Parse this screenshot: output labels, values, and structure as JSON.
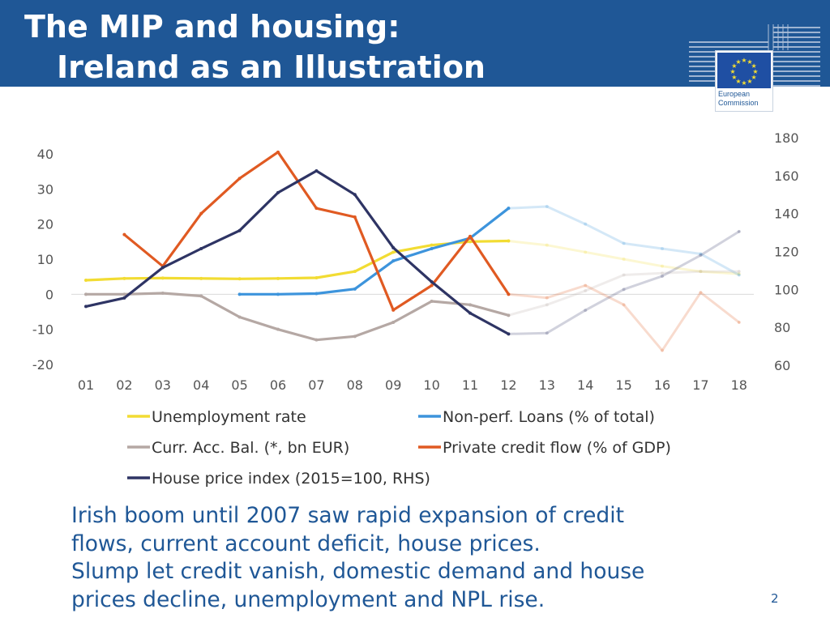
{
  "slide": {
    "title_line1": "The MIP and housing:",
    "title_line2": "Ireland as an Illustration",
    "logo": {
      "line1": "European",
      "line2": "Commission"
    },
    "body_lines": [
      "Irish boom until 2007 saw rapid expansion of credit",
      "flows, current account deficit, house prices.",
      "Slump let credit vanish, domestic demand and house",
      "prices decline, unemployment and NPL rise."
    ],
    "page_number": "2"
  },
  "colors": {
    "header_bg": "#1f5796",
    "text_blue": "#1f5796",
    "unemployment": "#f2dc33",
    "npl": "#3d94dc",
    "current_account": "#b5a8a4",
    "credit_flow": "#e05a22",
    "house_price": "#2e3464"
  },
  "chart_data": {
    "type": "line",
    "title": "",
    "x": [
      "01",
      "02",
      "03",
      "04",
      "05",
      "06",
      "07",
      "08",
      "09",
      "10",
      "11",
      "12",
      "13",
      "14",
      "15",
      "16",
      "17",
      "18"
    ],
    "forecast_from_index": 12,
    "y_left": {
      "ticks": [
        "40",
        "30",
        "20",
        "10",
        "0",
        "-10",
        "-20"
      ],
      "ylim": [
        -20,
        40
      ]
    },
    "y_right": {
      "ticks": [
        "180",
        "160",
        "140",
        "120",
        "100",
        "80",
        "60"
      ],
      "ylim": [
        60,
        180
      ]
    },
    "series": [
      {
        "name": "Unemployment rate",
        "key": "unemployment",
        "axis": "left",
        "values": [
          4.0,
          4.5,
          4.6,
          4.5,
          4.4,
          4.5,
          4.7,
          6.5,
          12.0,
          14.0,
          15.0,
          15.2,
          14.0,
          12.0,
          10.0,
          8.0,
          6.5,
          5.8
        ]
      },
      {
        "name": "Non-perf. Loans (% of total)",
        "key": "npl",
        "axis": "left",
        "values": [
          null,
          null,
          null,
          null,
          0.0,
          0.0,
          0.2,
          1.5,
          9.5,
          13.0,
          16.0,
          24.5,
          25.0,
          20.0,
          14.5,
          13.0,
          11.5,
          5.5
        ]
      },
      {
        "name": "Curr. Acc. Bal. (*, bn EUR)",
        "key": "current_account",
        "axis": "left",
        "values": [
          0.0,
          0.0,
          0.3,
          -0.5,
          -6.5,
          -10.0,
          -13.0,
          -12.0,
          -8.0,
          -2.0,
          -3.0,
          -6.0,
          -3.0,
          1.0,
          5.5,
          6.0,
          6.5,
          6.5
        ]
      },
      {
        "name": "Private credit flow (% of GDP)",
        "key": "credit_flow",
        "axis": "left",
        "values": [
          null,
          17.0,
          8.0,
          23.0,
          33.0,
          40.5,
          24.5,
          22.0,
          -4.5,
          2.5,
          16.5,
          0.0,
          -1.0,
          2.5,
          -3.0,
          -16.0,
          0.5,
          -8.0
        ]
      },
      {
        "name": "House price index (2015=100, RHS)",
        "key": "house_price",
        "axis": "right",
        "values": [
          91.0,
          95.5,
          111.5,
          121.5,
          131.0,
          151.0,
          162.5,
          150.0,
          122.0,
          104.0,
          87.5,
          76.5,
          77.0,
          89.0,
          100.0,
          107.0,
          118.0,
          130.5
        ]
      }
    ]
  }
}
